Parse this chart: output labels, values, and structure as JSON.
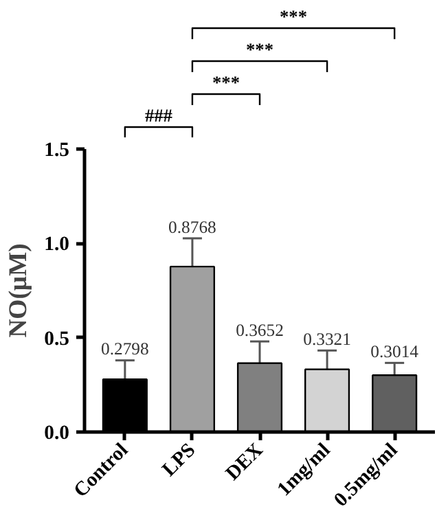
{
  "chart_data": {
    "type": "bar",
    "ylabel": "NO(μM)",
    "categories": [
      "Control",
      "LPS",
      "DEX",
      "1mg/ml",
      "0.5mg/ml"
    ],
    "values": [
      0.2798,
      0.8768,
      0.3652,
      0.3321,
      0.3014
    ],
    "colors": [
      "#000000",
      "#a0a0a0",
      "#808080",
      "#d3d3d3",
      "#606060"
    ],
    "errors": [
      0.1,
      0.15,
      0.115,
      0.1,
      0.065
    ],
    "data_labels": true,
    "ylim": [
      0,
      1.5
    ],
    "yticks": [
      {
        "value": 0,
        "label": "0.0"
      },
      {
        "value": 0.5,
        "label": "0.5"
      },
      {
        "value": 1,
        "label": "1.0"
      },
      {
        "value": 1.5,
        "label": "1.5"
      }
    ],
    "grid": false,
    "annotations": [
      "###",
      "***",
      "***",
      "***"
    ]
  }
}
